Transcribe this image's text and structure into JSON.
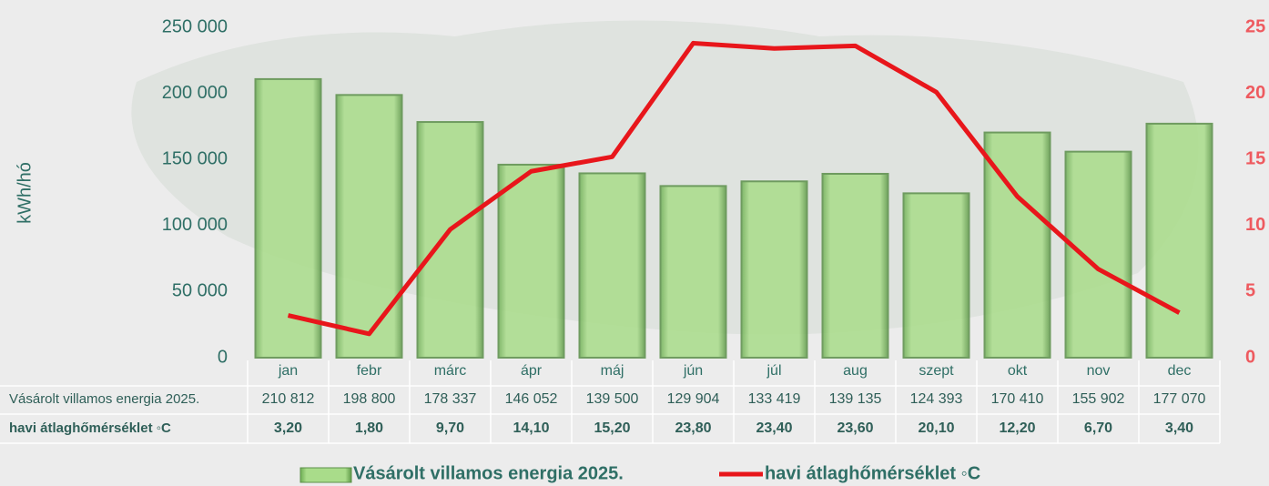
{
  "chart_data": {
    "type": "bar_line",
    "y_label": "kWh/hó",
    "categories": [
      "jan",
      "febr",
      "márc",
      "ápr",
      "máj",
      "jún",
      "júl",
      "aug",
      "szept",
      "okt",
      "nov",
      "dec"
    ],
    "series": [
      {
        "name": "Vásárolt villamos energia 2025.",
        "color": "#9fd77f",
        "type": "bar",
        "values": [
          210812,
          198800,
          178337,
          146052,
          139500,
          129904,
          133419,
          139135,
          124393,
          170410,
          155902,
          177070
        ],
        "value_labels": [
          "210 812",
          "198 800",
          "178 337",
          "146 052",
          "139 500",
          "129 904",
          "133 419",
          "139 135",
          "124 393",
          "170 410",
          "155 902",
          "177 070"
        ]
      },
      {
        "name": "havi átlaghőmérséklet ◦C",
        "color": "#e8161b",
        "type": "line",
        "axis": "y2",
        "values": [
          3.2,
          1.8,
          9.7,
          14.1,
          15.2,
          23.8,
          23.4,
          23.6,
          20.1,
          12.2,
          6.7,
          3.4
        ],
        "value_labels": [
          "3,20",
          "1,80",
          "9,70",
          "14,10",
          "15,20",
          "23,80",
          "23,40",
          "23,60",
          "20,10",
          "12,20",
          "6,70",
          "3,40"
        ]
      }
    ],
    "ylim": [
      0,
      250000
    ],
    "yticks": [
      0,
      {
        "value": 50000,
        "label": "50 000"
      },
      {
        "value": 100000,
        "label": "100 000"
      },
      {
        "value": 150000,
        "label": "150 000"
      },
      {
        "value": 200000,
        "label": "200 000"
      },
      {
        "value": 250000,
        "label": "250 000"
      }
    ],
    "y2lim": [
      0,
      25
    ],
    "y2ticks": [
      0,
      5,
      10,
      15,
      20,
      25
    ],
    "grid": false,
    "legend": "bottom",
    "data_table": true
  }
}
